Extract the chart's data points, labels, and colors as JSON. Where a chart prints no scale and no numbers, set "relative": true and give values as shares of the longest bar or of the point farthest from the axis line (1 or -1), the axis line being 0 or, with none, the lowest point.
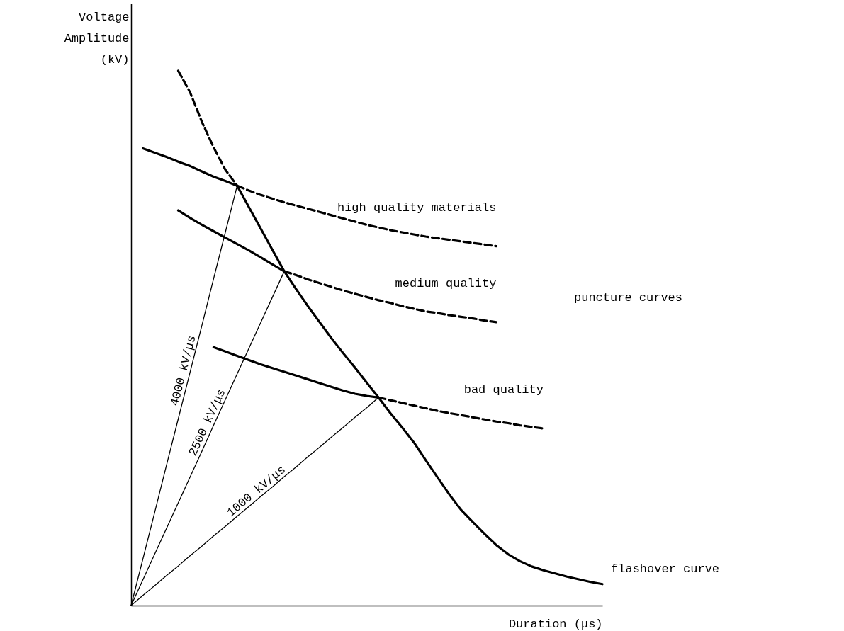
{
  "chart_data": {
    "type": "line",
    "relative": true,
    "xlabel": "Duration (μs)",
    "ylabel": "Voltage Amplitude (kV)",
    "annotations": [
      "puncture curves"
    ],
    "categories": [
      null,
      null,
      null,
      null,
      null,
      null,
      null,
      null,
      null,
      null,
      null,
      null,
      null,
      null,
      null,
      null,
      null,
      null,
      null,
      null,
      null,
      null,
      null,
      null,
      null,
      null,
      null,
      null,
      null,
      null,
      null,
      null,
      null,
      null,
      null,
      null,
      null,
      null,
      null,
      null,
      null
    ],
    "series": [
      {
        "name": "flashover curve",
        "color": "#000000",
        "line_style": "solid",
        "values": [
          null,
          null,
          null,
          null,
          null,
          null,
          null,
          null,
          null,
          0.785,
          0.745,
          0.705,
          0.665,
          0.625,
          0.592,
          0.56,
          0.53,
          0.5,
          0.472,
          0.445,
          0.417,
          0.389,
          0.36,
          0.333,
          0.305,
          0.272,
          0.24,
          0.208,
          0.179,
          0.156,
          0.134,
          0.113,
          0.096,
          0.083,
          0.073,
          0.066,
          0.06,
          0.054,
          0.049,
          0.044,
          0.04
        ]
      },
      {
        "color": "#000000",
        "line_style": "dashed",
        "values": [
          null,
          null,
          null,
          null,
          1.0,
          0.96,
          0.905,
          0.857,
          0.815,
          0.785,
          null,
          null,
          null,
          null,
          null,
          null,
          null,
          null,
          null,
          null,
          null,
          null,
          null,
          null,
          null,
          null,
          null,
          null,
          null,
          null,
          null,
          null,
          null,
          null,
          null,
          null,
          null,
          null,
          null,
          null,
          null
        ]
      },
      {
        "color": "#000000",
        "line_style": "solid",
        "values": [
          null,
          0.855,
          0.847,
          0.839,
          0.83,
          0.822,
          0.812,
          0.802,
          0.794,
          0.785,
          null,
          null,
          null,
          null,
          null,
          null,
          null,
          null,
          null,
          null,
          null,
          null,
          null,
          null,
          null,
          null,
          null,
          null,
          null,
          null,
          null,
          null,
          null,
          null,
          null,
          null,
          null,
          null,
          null,
          null,
          null
        ]
      },
      {
        "name": "high quality materials",
        "color": "#000000",
        "line_style": "dashed",
        "values": [
          null,
          null,
          null,
          null,
          null,
          null,
          null,
          null,
          null,
          0.785,
          0.776,
          0.768,
          0.761,
          0.754,
          0.748,
          0.742,
          0.736,
          0.73,
          0.724,
          0.718,
          0.712,
          0.707,
          0.702,
          0.698,
          0.694,
          0.69,
          0.687,
          0.684,
          0.681,
          0.678,
          0.675,
          0.672,
          null,
          null,
          null,
          null,
          null,
          null,
          null,
          null,
          null
        ]
      },
      {
        "color": "#000000",
        "line_style": "solid",
        "values": [
          null,
          null,
          null,
          null,
          0.739,
          0.725,
          0.712,
          0.7,
          0.688,
          0.676,
          0.664,
          0.651,
          0.638,
          0.625,
          null,
          null,
          null,
          null,
          null,
          null,
          null,
          null,
          null,
          null,
          null,
          null,
          null,
          null,
          null,
          null,
          null,
          null,
          null,
          null,
          null,
          null,
          null,
          null,
          null,
          null,
          null
        ]
      },
      {
        "name": "medium quality",
        "color": "#000000",
        "line_style": "dashed",
        "values": [
          null,
          null,
          null,
          null,
          null,
          null,
          null,
          null,
          null,
          null,
          null,
          null,
          null,
          0.625,
          0.618,
          0.61,
          0.603,
          0.596,
          0.589,
          0.583,
          0.577,
          0.571,
          0.566,
          0.56,
          0.555,
          0.55,
          0.547,
          0.543,
          0.54,
          0.537,
          0.533,
          0.53,
          null,
          null,
          null,
          null,
          null,
          null,
          null,
          null,
          null
        ]
      },
      {
        "color": "#000000",
        "line_style": "solid",
        "values": [
          null,
          null,
          null,
          null,
          null,
          null,
          null,
          0.483,
          0.475,
          0.467,
          0.459,
          0.451,
          0.444,
          0.437,
          0.43,
          0.423,
          0.416,
          0.409,
          0.402,
          0.396,
          0.392,
          0.389,
          null,
          null,
          null,
          null,
          null,
          null,
          null,
          null,
          null,
          null,
          null,
          null,
          null,
          null,
          null,
          null,
          null,
          null,
          null
        ]
      },
      {
        "name": "bad quality",
        "color": "#000000",
        "line_style": "dashed",
        "values": [
          null,
          null,
          null,
          null,
          null,
          null,
          null,
          null,
          null,
          null,
          null,
          null,
          null,
          null,
          null,
          null,
          null,
          null,
          null,
          null,
          null,
          0.389,
          0.384,
          0.379,
          0.374,
          0.369,
          0.364,
          0.36,
          0.356,
          0.352,
          0.348,
          0.344,
          0.341,
          0.337,
          0.334,
          0.331,
          null,
          null,
          null,
          null,
          null
        ]
      },
      {
        "name": "4000 kV/μs",
        "color": "#000000",
        "line_style": "solid",
        "values": [
          0,
          0.087,
          0.174,
          0.262,
          0.349,
          0.436,
          0.523,
          0.611,
          0.698,
          0.785,
          null,
          null,
          null,
          null,
          null,
          null,
          null,
          null,
          null,
          null,
          null,
          null,
          null,
          null,
          null,
          null,
          null,
          null,
          null,
          null,
          null,
          null,
          null,
          null,
          null,
          null,
          null,
          null,
          null,
          null,
          null
        ]
      },
      {
        "name": "2500 kV/μs",
        "color": "#000000",
        "line_style": "solid",
        "values": [
          0,
          0.048,
          0.096,
          0.144,
          0.192,
          0.24,
          0.288,
          0.337,
          0.385,
          0.433,
          0.481,
          0.529,
          0.577,
          0.625,
          null,
          null,
          null,
          null,
          null,
          null,
          null,
          null,
          null,
          null,
          null,
          null,
          null,
          null,
          null,
          null,
          null,
          null,
          null,
          null,
          null,
          null,
          null,
          null,
          null,
          null,
          null
        ]
      },
      {
        "name": "1000 kV/μs",
        "color": "#000000",
        "line_style": "solid",
        "values": [
          0,
          0.019,
          0.037,
          0.056,
          0.074,
          0.093,
          0.111,
          0.13,
          0.148,
          0.167,
          0.185,
          0.204,
          0.222,
          0.241,
          0.259,
          0.278,
          0.296,
          0.315,
          0.333,
          0.352,
          0.37,
          0.389,
          null,
          null,
          null,
          null,
          null,
          null,
          null,
          null,
          null,
          null,
          null,
          null,
          null,
          null,
          null,
          null,
          null,
          null,
          null
        ]
      }
    ]
  }
}
